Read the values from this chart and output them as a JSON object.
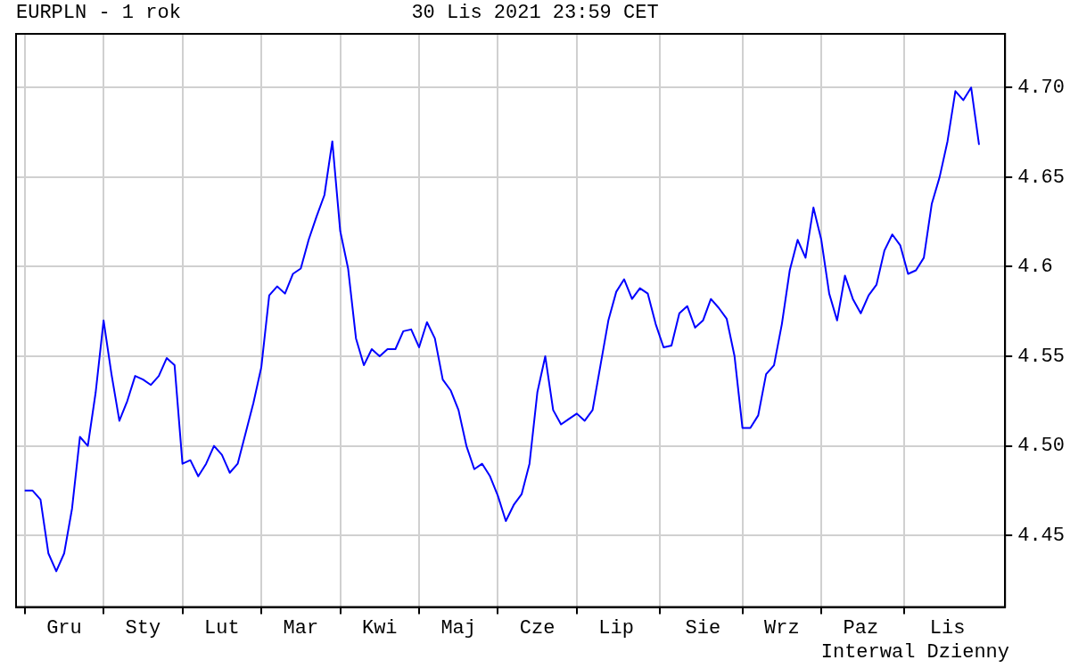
{
  "chart_data": {
    "type": "line",
    "title": "EURPLN - 1 rok",
    "subtitle": "30 Lis 2021 23:59 CET",
    "annotations": [
      "Interwal Dzienny"
    ],
    "categories": [
      null,
      null,
      null,
      null,
      null,
      "Gru",
      null,
      null,
      null,
      null,
      null,
      null,
      null,
      null,
      null,
      "Sty",
      null,
      null,
      null,
      null,
      null,
      null,
      null,
      null,
      null,
      "Lut",
      null,
      null,
      null,
      null,
      null,
      null,
      null,
      null,
      null,
      "Mar",
      null,
      null,
      null,
      null,
      null,
      null,
      null,
      null,
      null,
      "Kwi",
      null,
      null,
      null,
      null,
      null,
      null,
      null,
      null,
      null,
      "Maj",
      null,
      null,
      null,
      null,
      null,
      null,
      null,
      null,
      null,
      "Cze",
      null,
      null,
      null,
      null,
      null,
      null,
      null,
      null,
      null,
      "Lip",
      null,
      null,
      null,
      null,
      null,
      null,
      null,
      null,
      null,
      null,
      "Sie",
      null,
      null,
      null,
      null,
      null,
      null,
      null,
      null,
      null,
      "Wrz",
      null,
      null,
      null,
      null,
      null,
      null,
      null,
      null,
      null,
      "Paz",
      null,
      null,
      null,
      null,
      null,
      null,
      null,
      null,
      null,
      null,
      "Lis",
      null,
      null,
      null,
      null
    ],
    "series": [
      {
        "color": "#0000ff",
        "values": [
          4.475,
          4.475,
          4.47,
          4.44,
          4.43,
          4.44,
          4.465,
          4.505,
          4.5,
          4.53,
          4.57,
          4.54,
          4.514,
          4.525,
          4.539,
          4.537,
          4.534,
          4.539,
          4.549,
          4.545,
          4.49,
          4.492,
          4.483,
          4.49,
          4.5,
          4.495,
          4.485,
          4.49,
          4.507,
          4.524,
          4.544,
          4.584,
          4.589,
          4.585,
          4.596,
          4.599,
          4.615,
          4.628,
          4.64,
          4.67,
          4.62,
          4.599,
          4.56,
          4.545,
          4.554,
          4.55,
          4.554,
          4.554,
          4.564,
          4.565,
          4.555,
          4.569,
          4.56,
          4.537,
          4.531,
          4.52,
          4.5,
          4.487,
          4.49,
          4.483,
          4.472,
          4.458,
          4.467,
          4.473,
          4.49,
          4.53,
          4.55,
          4.52,
          4.512,
          4.515,
          4.518,
          4.514,
          4.52,
          4.545,
          4.57,
          4.586,
          4.593,
          4.582,
          4.588,
          4.585,
          4.568,
          4.555,
          4.556,
          4.574,
          4.578,
          4.566,
          4.57,
          4.582,
          4.577,
          4.571,
          4.55,
          4.51,
          4.51,
          4.517,
          4.54,
          4.545,
          4.568,
          4.598,
          4.615,
          4.605,
          4.633,
          4.615,
          4.585,
          4.57,
          4.595,
          4.582,
          4.574,
          4.584,
          4.59,
          4.609,
          4.618,
          4.612,
          4.596,
          4.598,
          4.605,
          4.635,
          4.65,
          4.67,
          4.698,
          4.693,
          4.7,
          4.668
        ]
      }
    ],
    "ylim": [
      4.41,
      4.73
    ],
    "yticks": [
      4.45,
      {
        "value": 4.5,
        "label": "4.50"
      },
      4.55,
      4.6,
      4.65,
      {
        "value": 4.7,
        "label": "4.70"
      }
    ],
    "grid": true,
    "legend": false,
    "marker": "none",
    "line_style": "solid"
  }
}
